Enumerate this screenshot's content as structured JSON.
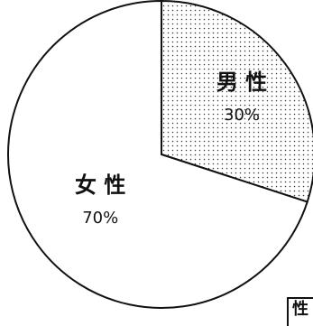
{
  "chart_data": {
    "type": "pie",
    "categories": [
      "男 性",
      "女 性"
    ],
    "values": [
      30,
      70
    ],
    "value_labels": [
      "30%",
      "70%"
    ],
    "fills": [
      "dotted",
      "white"
    ],
    "start_angle": "12 o'clock",
    "direction": "clockwise",
    "title": "",
    "legend": "none"
  },
  "corner_text": "性",
  "colors": {
    "stroke": "#111111",
    "background": "#ffffff",
    "dot": "#333333"
  }
}
